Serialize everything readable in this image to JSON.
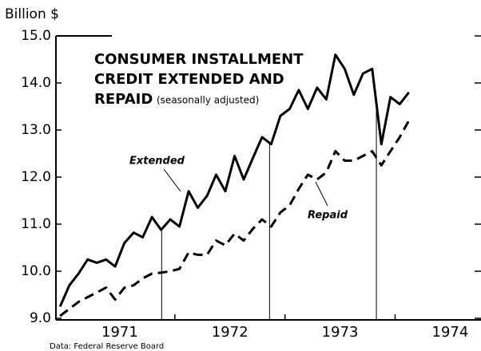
{
  "chart_data": {
    "type": "line",
    "y_unit": "Billion $",
    "title": [
      "CONSUMER INSTALLMENT",
      "CREDIT EXTENDED AND",
      "REPAID"
    ],
    "subtitle": "(seasonally adjusted)",
    "source": "Data:  Federal Reserve Board",
    "x": [
      1970.958,
      1971.042,
      1971.125,
      1971.208,
      1971.292,
      1971.375,
      1971.458,
      1971.542,
      1971.625,
      1971.708,
      1971.792,
      1971.875,
      1971.958,
      1972.042,
      1972.125,
      1972.208,
      1972.292,
      1972.375,
      1972.458,
      1972.542,
      1972.625,
      1972.708,
      1972.792,
      1972.875,
      1972.958,
      1973.042,
      1973.125,
      1973.208,
      1973.292,
      1973.375,
      1973.458,
      1973.542,
      1973.625,
      1973.708,
      1973.792,
      1973.875,
      1973.958,
      1974.042,
      1974.125
    ],
    "series": [
      {
        "name": "Extended",
        "color": "#000000",
        "dash": false,
        "values": [
          9.25,
          9.7,
          9.95,
          10.25,
          10.18,
          10.25,
          10.1,
          10.6,
          10.82,
          10.72,
          11.15,
          10.88,
          11.1,
          10.95,
          11.7,
          11.35,
          11.6,
          12.05,
          11.7,
          12.45,
          11.95,
          12.4,
          12.85,
          12.7,
          13.3,
          13.45,
          13.85,
          13.45,
          13.9,
          13.65,
          14.6,
          14.3,
          13.75,
          14.2,
          14.3,
          12.7,
          13.7,
          13.55,
          13.8
        ]
      },
      {
        "name": "Repaid",
        "color": "#000000",
        "dash": true,
        "values": [
          9.05,
          9.2,
          9.35,
          9.45,
          9.55,
          9.65,
          9.4,
          9.65,
          9.7,
          9.85,
          9.95,
          9.97,
          10.0,
          10.05,
          10.4,
          10.35,
          10.35,
          10.65,
          10.55,
          10.8,
          10.65,
          10.9,
          11.1,
          10.95,
          11.25,
          11.4,
          11.75,
          12.05,
          11.95,
          12.1,
          12.55,
          12.35,
          12.35,
          12.45,
          12.55,
          12.25,
          12.55,
          12.85,
          13.2
        ]
      }
    ],
    "xlim": [
      1970.92,
      1974.78
    ],
    "xticks": [
      {
        "value": 1971.5,
        "label": "1971"
      },
      {
        "value": 1972.5,
        "label": "1972"
      },
      {
        "value": 1973.5,
        "label": "1973"
      },
      {
        "value": 1974.5,
        "label": "1974"
      }
    ],
    "x_minor_ticks": [
      1972,
      1973,
      1974
    ],
    "vlines": [
      1971.88,
      1972.86,
      1973.83
    ],
    "ylim": [
      9,
      15
    ],
    "yticks": [
      {
        "value": 9,
        "label": "9.0"
      },
      {
        "value": 10,
        "label": "10.0"
      },
      {
        "value": 11,
        "label": "11.0"
      },
      {
        "value": 12,
        "label": "12.0"
      },
      {
        "value": 13,
        "label": "13.0"
      },
      {
        "value": 14,
        "label": "14.0"
      },
      {
        "value": 15,
        "label": "15.0"
      }
    ],
    "grid": false
  }
}
